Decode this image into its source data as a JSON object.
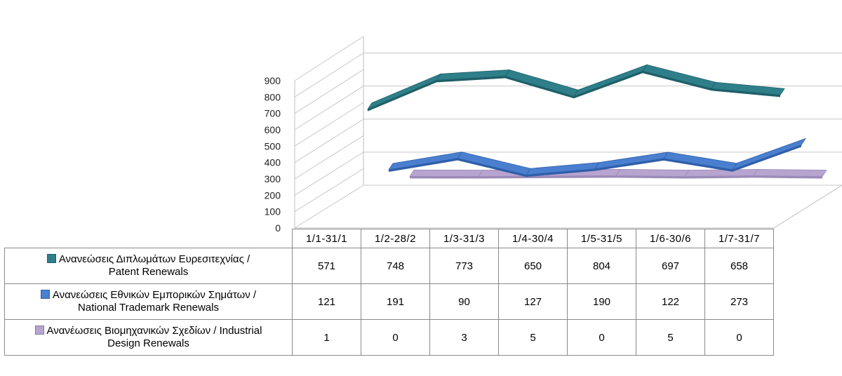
{
  "colors": {
    "patent": "#2e7f8a",
    "trademark": "#4a7fd0",
    "design": "#b7a4cf",
    "grid": "#c8c8c8"
  },
  "chart_data": {
    "type": "line",
    "style": "3d-line",
    "title": "",
    "xlabel": "",
    "ylabel": "",
    "ylim": [
      0,
      900
    ],
    "yticks": [
      "0",
      "100",
      "200",
      "300",
      "400",
      "500",
      "600",
      "700",
      "800",
      "900"
    ],
    "grid": true,
    "legend": "data-table-below",
    "categories": [
      "1/1-31/1",
      "1/2-28/2",
      "1/3-31/3",
      "1/4-30/4",
      "1/5-31/5",
      "1/6-30/6",
      "1/7-31/7"
    ],
    "series": [
      {
        "name_gr": "Ανανεώσεις Διπλωμάτων Ευρεσιτεχνίας  /",
        "name_en": "Patent Renewals",
        "color": "#2e7f8a",
        "values": [
          571,
          748,
          773,
          650,
          804,
          697,
          658
        ],
        "labels": [
          "571",
          "748",
          "773",
          "650",
          "804",
          "697",
          "658"
        ]
      },
      {
        "name_gr": "Ανανεώσεις Εθνικών Εμπορικών Σημάτων /",
        "name_en": "National Trademark Renewals",
        "color": "#4a7fd0",
        "values": [
          121,
          191,
          90,
          127,
          190,
          122,
          273
        ],
        "labels": [
          "121",
          "191",
          "90",
          "127",
          "190",
          "122",
          "273"
        ]
      },
      {
        "name_gr": "Ανανέωσεις Βιομηχανικών Σχεδίων / Industrial",
        "name_en": "Design Renewals",
        "color": "#b7a4cf",
        "values": [
          1,
          0,
          3,
          5,
          0,
          5,
          0
        ],
        "labels": [
          "1",
          "0",
          "3",
          "5",
          "0",
          "5",
          "0"
        ]
      }
    ]
  }
}
